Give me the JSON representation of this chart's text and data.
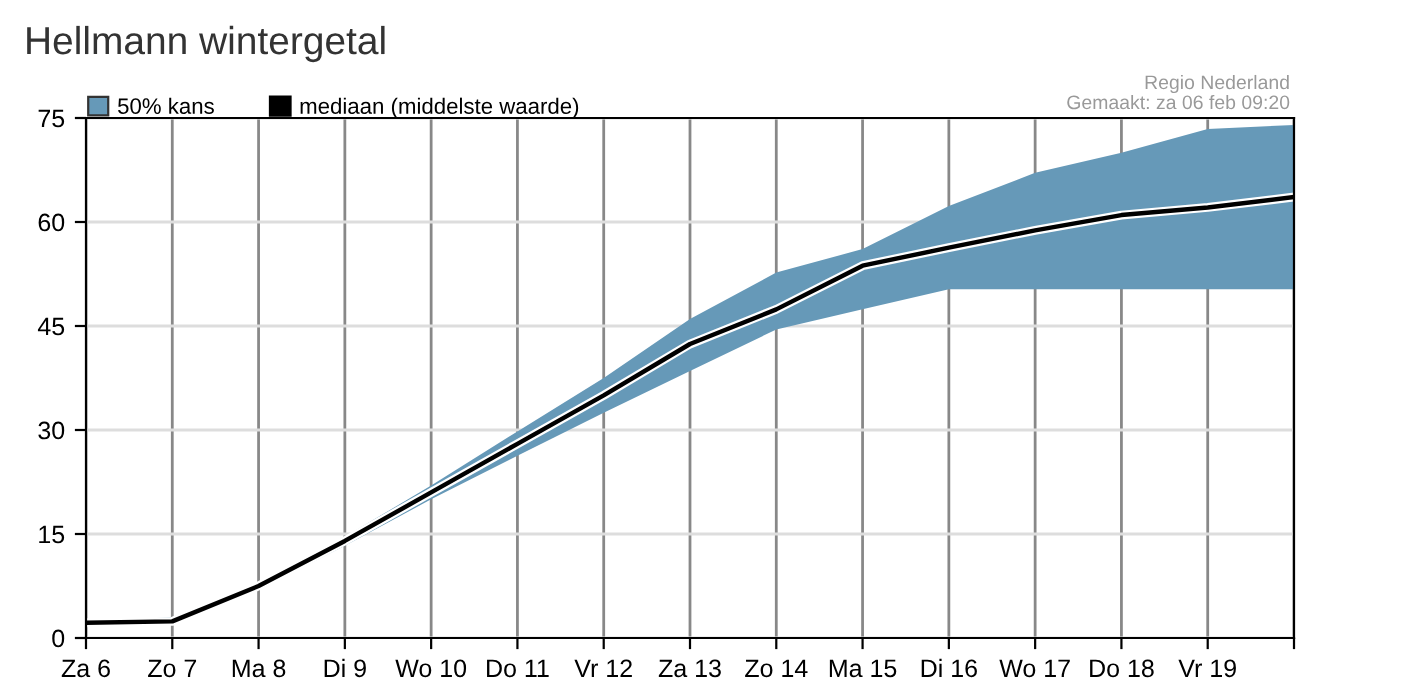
{
  "chart_data": {
    "type": "line",
    "title": "Hellmann wintergetal",
    "annotations": [
      "Regio Nederland",
      "Gemaakt: za 06 feb 09:20"
    ],
    "categories": [
      "Za 6",
      "Zo 7",
      "Ma 8",
      "Di 9",
      "Wo 10",
      "Do 11",
      "Vr 12",
      "Za 13",
      "Zo 14",
      "Ma 15",
      "Di 16",
      "Wo 17",
      "Do 18",
      "Vr 19",
      null
    ],
    "series": [
      {
        "name": "50% kans",
        "type": "area",
        "color": "#6699b8",
        "values": [
          null,
          null,
          null,
          null,
          null,
          null,
          null,
          null,
          null,
          null,
          null,
          null,
          null,
          null,
          null
        ]
      },
      {
        "name": "mediaan (middelste waarde)",
        "color": "#000000",
        "values": [
          2.2,
          2.4,
          7.5,
          14,
          21,
          28,
          35,
          42.4,
          47.4,
          53.7,
          56.3,
          58.8,
          61.0,
          62.1,
          63.6
        ],
        "lower": [
          2.0,
          2.2,
          7,
          13.3,
          20,
          26.3,
          32.5,
          38.5,
          44.5,
          47.4,
          50.3,
          50.3,
          50.3,
          50.3,
          50.3
        ],
        "upper": [
          2.4,
          3.0,
          8,
          14.6,
          22,
          29.8,
          37.5,
          46,
          52.7,
          56.1,
          62.3,
          67.1,
          70.0,
          73.4,
          74.0
        ]
      }
    ],
    "ylim": [
      0,
      75
    ],
    "yticks": [
      0,
      15,
      30,
      45,
      60,
      75
    ],
    "grid": true,
    "legend": "top left",
    "marker": "none",
    "line_style": "solid"
  }
}
